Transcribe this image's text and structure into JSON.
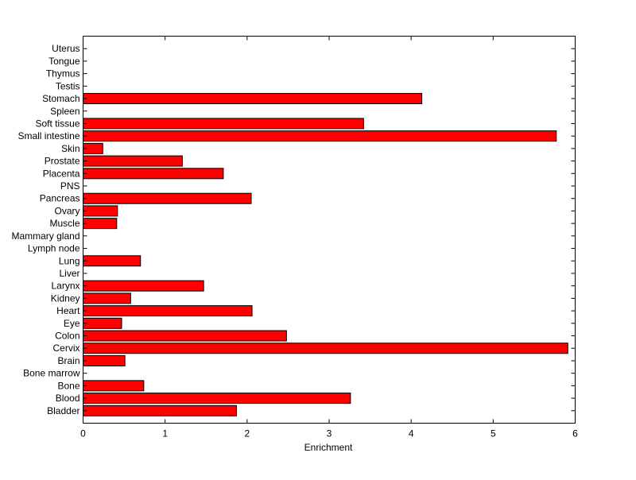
{
  "chart_data": {
    "type": "bar",
    "orientation": "horizontal",
    "title": "",
    "xlabel": "Enrichment",
    "ylabel": "",
    "xlim": [
      0,
      6
    ],
    "xticks": [
      "0",
      "1",
      "2",
      "3",
      "4",
      "5",
      "6"
    ],
    "grid": false,
    "bar_color": "#ff0000",
    "bar_edge_color": "#000000",
    "categories": [
      "Bladder",
      "Blood",
      "Bone",
      "Bone marrow",
      "Brain",
      "Cervix",
      "Colon",
      "Eye",
      "Heart",
      "Kidney",
      "Larynx",
      "Liver",
      "Lung",
      "Lymph node",
      "Mammary gland",
      "Muscle",
      "Ovary",
      "Pancreas",
      "PNS",
      "Placenta",
      "Prostate",
      "Skin",
      "Small intestine",
      "Soft tissue",
      "Spleen",
      "Stomach",
      "Testis",
      "Thymus",
      "Tongue",
      "Uterus"
    ],
    "values": [
      1.87,
      3.26,
      0.74,
      0,
      0.51,
      5.91,
      2.48,
      0.47,
      2.06,
      0.58,
      1.47,
      0,
      0.7,
      0,
      0,
      0.41,
      0.42,
      2.05,
      0,
      1.71,
      1.21,
      0.24,
      5.77,
      3.42,
      0,
      4.13,
      0,
      0,
      0,
      0
    ]
  }
}
